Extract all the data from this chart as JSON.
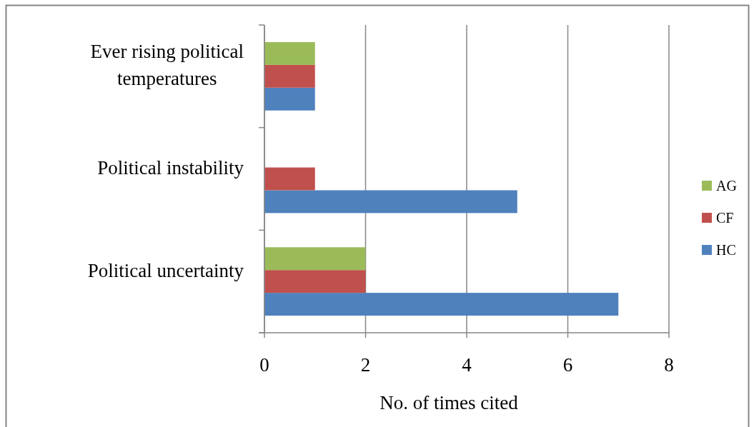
{
  "chart_data": {
    "type": "bar",
    "orientation": "horizontal",
    "categories": [
      "Ever rising political temperatures",
      "Political instability",
      "Political uncertainty"
    ],
    "series": [
      {
        "name": "HC",
        "color": "#4f81bd",
        "values": [
          1,
          5,
          7
        ]
      },
      {
        "name": "CF",
        "color": "#c0504d",
        "values": [
          1,
          1,
          2
        ]
      },
      {
        "name": "AG",
        "color": "#9bbb59",
        "values": [
          1,
          null,
          2
        ]
      }
    ],
    "xlabel": "No. of times cited",
    "xlim": [
      0,
      8
    ],
    "xticks": [
      0,
      2,
      4,
      6,
      8
    ],
    "grid": "x",
    "legend": "right"
  }
}
